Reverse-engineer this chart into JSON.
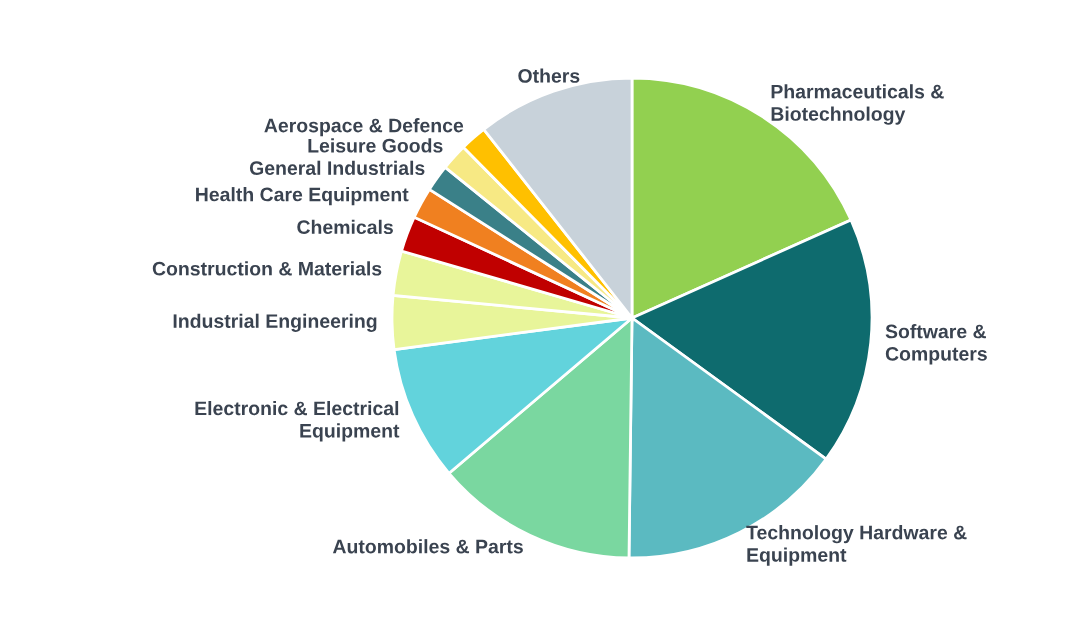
{
  "chart_data": {
    "type": "pie",
    "categories": [
      "Pharmaceuticals &\nBiotechnology",
      "Software &\nComputers",
      "Technology Hardware &\nEquipment",
      "Automobiles & Parts",
      "Electronic & Electrical\nEquipment",
      "Industrial Engineering",
      "Construction & Materials",
      "Chemicals",
      "Health Care Equipment",
      "General Industrials",
      "Leisure Goods",
      "Aerospace & Defence",
      "Others"
    ],
    "values": [
      18.3,
      16.7,
      15.2,
      13.6,
      9.1,
      3.6,
      3.0,
      2.4,
      2.1,
      1.8,
      1.8,
      1.8,
      10.6
    ],
    "colors": [
      "#92d050",
      "#0e6b6e",
      "#5bbac1",
      "#7ad7a0",
      "#62d3dc",
      "#e8f59a",
      "#e8f59a",
      "#c00000",
      "#f08020",
      "#3a8088",
      "#f7e984",
      "#ffc000",
      "#c8d2da"
    ]
  }
}
